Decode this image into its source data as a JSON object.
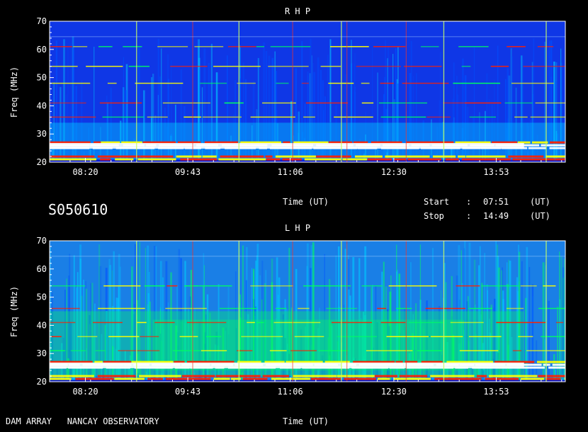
{
  "chart_data": [
    {
      "type": "heatmap",
      "title": "R H P",
      "ylabel": "Freq (MHz)",
      "xlabel": "Time (UT)",
      "yticks": [
        20,
        30,
        40,
        50,
        60,
        70
      ],
      "xticks": [
        "08:20",
        "09:43",
        "11:06",
        "12:30",
        "13:53"
      ],
      "ylim": [
        20,
        70
      ],
      "xlim": [
        "07:51",
        "14:49"
      ],
      "grid": true,
      "background_color": "#0f37e6",
      "emission_bands_mhz": [
        21,
        22,
        25,
        26,
        27,
        36,
        41,
        48,
        54,
        61
      ],
      "colormap": [
        "#0010c8",
        "#0050ff",
        "#00c8ff",
        "#00ff60",
        "#ffff00",
        "#ff2000",
        "#ffffff"
      ]
    },
    {
      "type": "heatmap",
      "title": "L H P",
      "ylabel": "Freq (MHz)",
      "xlabel": "Time (UT)",
      "yticks": [
        20,
        30,
        40,
        50,
        60,
        70
      ],
      "xticks": [
        "08:20",
        "09:43",
        "11:06",
        "12:30",
        "13:53"
      ],
      "ylim": [
        20,
        70
      ],
      "xlim": [
        "07:51",
        "14:49"
      ],
      "grid": true,
      "background_color": "#1a7fe6",
      "emission_bands_mhz": [
        21,
        22,
        25,
        26,
        27,
        31,
        36,
        41,
        46,
        54
      ],
      "colormap": [
        "#0010c8",
        "#0050ff",
        "#00c8ff",
        "#00ff60",
        "#ffff00",
        "#ff2000",
        "#ffffff"
      ]
    }
  ],
  "info": {
    "session": "S050610",
    "start_label": "Start",
    "stop_label": "Stop",
    "sep": ":",
    "start_time": "07:51",
    "stop_time": "14:49",
    "unit": "(UT)"
  },
  "footer": {
    "observatory": "DAM ARRAY   NANCAY OBSERVATORY"
  }
}
